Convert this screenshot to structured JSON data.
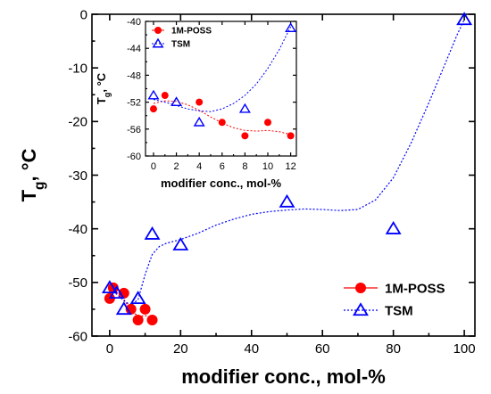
{
  "chart_data": [
    {
      "type": "scatter",
      "panel": "main",
      "xlabel": "modifier conc., mol-%",
      "ylabel": "T_g, °C",
      "xlim": [
        -5,
        103
      ],
      "ylim": [
        -60,
        0
      ],
      "xticks": [
        0,
        20,
        40,
        60,
        80,
        100
      ],
      "yticks": [
        0,
        -10,
        -20,
        -30,
        -40,
        -50,
        -60
      ],
      "legend_position": "bottom-right",
      "grid": false,
      "series": [
        {
          "name": "1M-POSS",
          "marker": "filled-circle",
          "color": "#ff0000",
          "line": "dotted",
          "line_color": "#ff0000",
          "points": [
            [
              0,
              -53
            ],
            [
              1,
              -51
            ],
            [
              4,
              -52
            ],
            [
              6,
              -55
            ],
            [
              8,
              -57
            ],
            [
              10,
              -55
            ],
            [
              12,
              -57
            ]
          ],
          "fit": [
            [
              0,
              -52.2
            ],
            [
              1,
              -51.8
            ],
            [
              2,
              -51.9
            ],
            [
              3,
              -52.4
            ],
            [
              4,
              -53.2
            ],
            [
              5,
              -54.2
            ],
            [
              6,
              -55.1
            ],
            [
              7,
              -55.8
            ],
            [
              8,
              -56.2
            ],
            [
              9,
              -56.3
            ],
            [
              10,
              -56.2
            ],
            [
              11,
              -56.4
            ],
            [
              12,
              -56.8
            ]
          ]
        },
        {
          "name": "TSM",
          "marker": "open-triangle",
          "color": "#0000ff",
          "line": "dotted",
          "line_color": "#0000ff",
          "points": [
            [
              0,
              -51
            ],
            [
              2,
              -52
            ],
            [
              4,
              -55
            ],
            [
              8,
              -53
            ],
            [
              12,
              -41
            ],
            [
              20,
              -43
            ],
            [
              50,
              -35
            ],
            [
              80,
              -40
            ],
            [
              100,
              -1
            ]
          ],
          "fit": [
            [
              0,
              -51.3
            ],
            [
              2,
              -52.2
            ],
            [
              4,
              -53.4
            ],
            [
              6,
              -54.3
            ],
            [
              8,
              -53.2
            ],
            [
              10,
              -48.5
            ],
            [
              12,
              -44.8
            ],
            [
              14,
              -43.3
            ],
            [
              16,
              -42.7
            ],
            [
              20,
              -42.0
            ],
            [
              25,
              -40.8
            ],
            [
              30,
              -39.3
            ],
            [
              35,
              -38.2
            ],
            [
              40,
              -37.3
            ],
            [
              45,
              -36.8
            ],
            [
              50,
              -36.5
            ],
            [
              55,
              -36.3
            ],
            [
              60,
              -36.4
            ],
            [
              65,
              -36.6
            ],
            [
              70,
              -36.4
            ],
            [
              75,
              -34.6
            ],
            [
              80,
              -30.5
            ],
            [
              85,
              -24.0
            ],
            [
              90,
              -16.5
            ],
            [
              95,
              -8.6
            ],
            [
              98,
              -3.8
            ],
            [
              100,
              -1.0
            ]
          ]
        }
      ]
    },
    {
      "type": "scatter",
      "panel": "inset",
      "xlabel": "modifier conc., mol-%",
      "ylabel": "T_g, °C",
      "xlim": [
        -0.7,
        12.5
      ],
      "ylim": [
        -60,
        -40
      ],
      "xticks": [
        0,
        2,
        4,
        6,
        8,
        10,
        12
      ],
      "yticks": [
        -40,
        -44,
        -48,
        -52,
        -56,
        -60
      ],
      "legend_position": "top-left",
      "grid": false,
      "series": [
        {
          "name": "1M-POSS",
          "marker": "filled-circle",
          "color": "#ff0000",
          "line": "dotted",
          "points": [
            [
              0,
              -53
            ],
            [
              1,
              -51
            ],
            [
              4,
              -52
            ],
            [
              6,
              -55
            ],
            [
              8,
              -57
            ],
            [
              10,
              -55
            ],
            [
              12,
              -57
            ]
          ],
          "fit": [
            [
              0,
              -52.2
            ],
            [
              1,
              -51.8
            ],
            [
              2,
              -51.9
            ],
            [
              3,
              -52.4
            ],
            [
              4,
              -53.2
            ],
            [
              5,
              -54.2
            ],
            [
              6,
              -55.1
            ],
            [
              7,
              -55.8
            ],
            [
              8,
              -56.2
            ],
            [
              9,
              -56.3
            ],
            [
              10,
              -56.2
            ],
            [
              11,
              -56.4
            ],
            [
              12,
              -56.8
            ]
          ]
        },
        {
          "name": "TSM",
          "marker": "open-triangle",
          "color": "#0000ff",
          "line": "dotted",
          "points": [
            [
              0,
              -51
            ],
            [
              2,
              -52
            ],
            [
              4,
              -55
            ],
            [
              8,
              -53
            ],
            [
              12,
              -41
            ]
          ],
          "fit": [
            [
              0,
              -51.6
            ],
            [
              1,
              -52.0
            ],
            [
              2,
              -52.5
            ],
            [
              3,
              -53.0
            ],
            [
              4,
              -53.3
            ],
            [
              5,
              -53.4
            ],
            [
              6,
              -53.0
            ],
            [
              7,
              -52.2
            ],
            [
              8,
              -51.0
            ],
            [
              9,
              -49.3
            ],
            [
              10,
              -47.0
            ],
            [
              11,
              -44.2
            ],
            [
              12,
              -40.8
            ]
          ]
        }
      ]
    }
  ]
}
